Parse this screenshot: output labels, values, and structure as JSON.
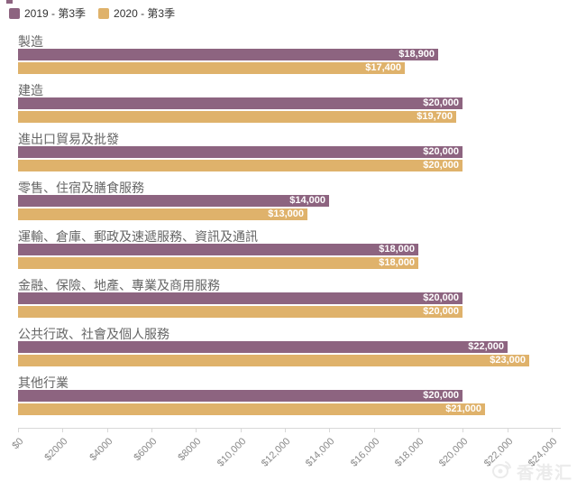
{
  "legend": {
    "items": [
      {
        "label": "2019 - 第3季",
        "color": "#8d6480"
      },
      {
        "label": "2020 - 第3季",
        "color": "#dfb26b"
      }
    ]
  },
  "chart_data": {
    "type": "bar",
    "orientation": "horizontal",
    "title": "",
    "categories": [
      "製造",
      "建造",
      "進出口貿易及批發",
      "零售、住宿及膳食服務",
      "運輸、倉庫、郵政及速遞服務、資訊及通訊",
      "金融、保險、地產、專業及商用服務",
      "公共行政、社會及個人服務",
      "其他行業"
    ],
    "series": [
      {
        "name": "2019 - 第3季",
        "color": "#8d6480",
        "values": [
          18900,
          20000,
          20000,
          14000,
          18000,
          20000,
          22000,
          20000
        ],
        "data_labels": [
          "$18,900",
          "$20,000",
          "$20,000",
          "$14,000",
          "$18,000",
          "$20,000",
          "$22,000",
          "$20,000"
        ]
      },
      {
        "name": "2020 - 第3季",
        "color": "#dfb26b",
        "values": [
          17400,
          19700,
          20000,
          13000,
          18000,
          20000,
          23000,
          21000
        ],
        "data_labels": [
          "$17,400",
          "$19,700",
          "$20,000",
          "$13,000",
          "$18,000",
          "$20,000",
          "$23,000",
          "$21,000"
        ]
      }
    ],
    "xlim": [
      0,
      24000
    ],
    "x_ticks": [
      {
        "value": 0,
        "label": "$0"
      },
      {
        "value": 2000,
        "label": "$2000"
      },
      {
        "value": 4000,
        "label": "$4000"
      },
      {
        "value": 6000,
        "label": "$6000"
      },
      {
        "value": 8000,
        "label": "$8000"
      },
      {
        "value": 10000,
        "label": "$10,000"
      },
      {
        "value": 12000,
        "label": "$12,000"
      },
      {
        "value": 14000,
        "label": "$14,000"
      },
      {
        "value": 16000,
        "label": "$16,000"
      },
      {
        "value": 18000,
        "label": "$18,000"
      },
      {
        "value": 20000,
        "label": "$20,000"
      },
      {
        "value": 22000,
        "label": "$22,000"
      },
      {
        "value": 24000,
        "label": "$24,000"
      }
    ],
    "grid": false,
    "legend_position": "top-left",
    "data_label_color": "#ffffff"
  },
  "watermark": {
    "text": "香港汇",
    "icon": "weibo-logo"
  }
}
